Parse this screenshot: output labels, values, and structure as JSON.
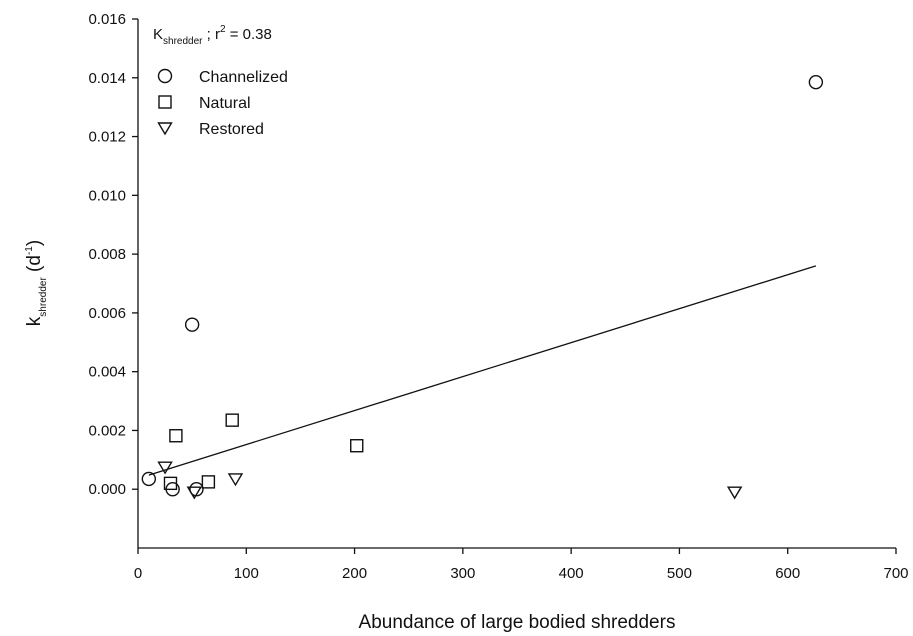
{
  "chart_data": {
    "type": "scatter",
    "xlabel": "Abundance of large bodied shredders",
    "ylabel": {
      "main": "k",
      "sub": "shredder",
      "unit_open": " (d",
      "unit_sup": "-1",
      "unit_close": ")"
    },
    "annotation": {
      "main": "K",
      "sub": "shredder",
      "mid": " ; r",
      "sup": "2",
      "tail": " = 0.38"
    },
    "xlim": [
      0,
      700
    ],
    "ylim": [
      -0.002,
      0.016
    ],
    "x_ticks": [
      "0",
      "100",
      "200",
      "300",
      "400",
      "500",
      "600",
      "700"
    ],
    "y_ticks": [
      "0.000",
      "0.002",
      "0.004",
      "0.006",
      "0.008",
      "0.010",
      "0.012",
      "0.014",
      "0.016"
    ],
    "series": [
      {
        "name": "Channelized",
        "marker": "circle",
        "points": [
          [
            10,
            0.00035
          ],
          [
            32,
            0.0
          ],
          [
            50,
            0.0056
          ],
          [
            54,
            0.0
          ],
          [
            626,
            0.01385
          ]
        ]
      },
      {
        "name": "Natural",
        "marker": "square",
        "points": [
          [
            30,
            0.0002
          ],
          [
            35,
            0.00182
          ],
          [
            65,
            0.00025
          ],
          [
            87,
            0.00235
          ],
          [
            202,
            0.00148
          ]
        ]
      },
      {
        "name": "Restored",
        "marker": "triangle-down",
        "points": [
          [
            25,
            0.00075
          ],
          [
            52,
            -0.0001
          ],
          [
            90,
            0.00035
          ],
          [
            551,
            -0.0001
          ]
        ]
      }
    ],
    "fit_line": {
      "x": [
        10,
        626
      ],
      "y": [
        0.00048,
        0.0076
      ]
    },
    "legend_position": "top-left",
    "grid": false
  }
}
